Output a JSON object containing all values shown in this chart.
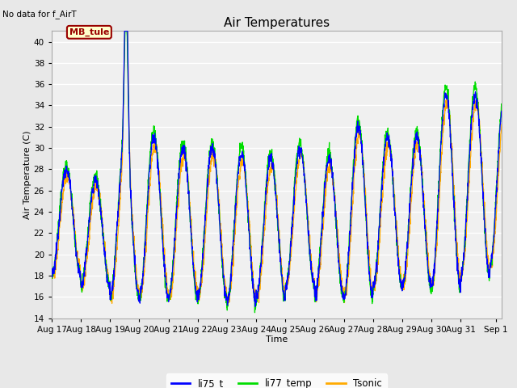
{
  "title": "Air Temperatures",
  "xlabel": "Time",
  "ylabel": "Air Temperature (C)",
  "note": "No data for f_AirT",
  "ylim": [
    14,
    41
  ],
  "yticks": [
    14,
    16,
    18,
    20,
    22,
    24,
    26,
    28,
    30,
    32,
    34,
    36,
    38,
    40
  ],
  "xtick_labels": [
    "Aug 17",
    "Aug 18",
    "Aug 19",
    "Aug 20",
    "Aug 21",
    "Aug 22",
    "Aug 23",
    "Aug 24",
    "Aug 25",
    "Aug 26",
    "Aug 27",
    "Aug 28",
    "Aug 29",
    "Aug 30",
    "Aug 31",
    "Sep 1"
  ],
  "legend_labels": [
    "li75_t",
    "li77_temp",
    "Tsonic"
  ],
  "line_colors": [
    "#0000ff",
    "#00dd00",
    "#ffaa00"
  ],
  "box_label": "MB_tule",
  "box_facecolor": "#ffffcc",
  "box_edgecolor": "#990000",
  "box_textcolor": "#990000",
  "fig_facecolor": "#e8e8e8",
  "plot_facecolor": "#f0f0f0",
  "title_fontsize": 11,
  "axis_fontsize": 8,
  "tick_fontsize": 7.5
}
